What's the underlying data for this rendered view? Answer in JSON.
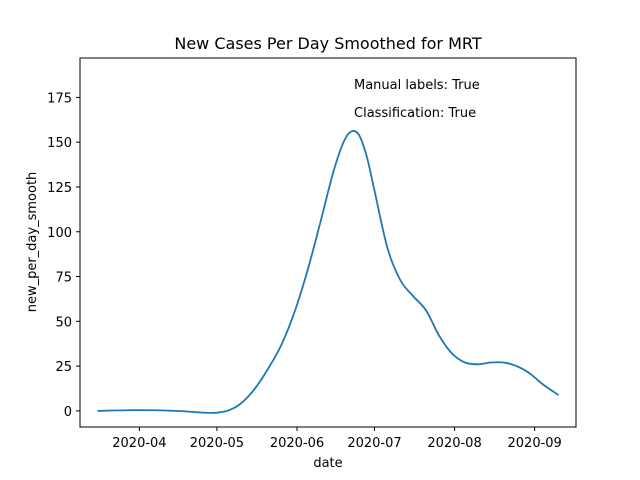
{
  "chart_data": {
    "type": "line",
    "title": "New Cases Per Day Smoothed for MRT",
    "xlabel": "date",
    "ylabel": "new_per_day_smooth",
    "ylim": [
      -9,
      197
    ],
    "xlim": [
      "2020-03-09",
      "2020-09-17"
    ],
    "yticks": [
      0,
      25,
      50,
      75,
      100,
      125,
      150,
      175
    ],
    "xticks": [
      "2020-04-01",
      "2020-05-01",
      "2020-06-01",
      "2020-07-01",
      "2020-08-01",
      "2020-09-01"
    ],
    "xtick_labels": [
      "2020-04",
      "2020-05",
      "2020-06",
      "2020-07",
      "2020-08",
      "2020-09"
    ],
    "grid": false,
    "annotations": [
      "Manual labels: True",
      "Classification: True"
    ],
    "line_color": "#1f77b4",
    "series": [
      {
        "x": [
          "2020-03-16",
          "2020-03-31",
          "2020-04-15",
          "2020-04-26",
          "2020-05-01",
          "2020-05-06",
          "2020-05-11",
          "2020-05-16",
          "2020-05-21",
          "2020-05-26",
          "2020-05-31",
          "2020-06-05",
          "2020-06-10",
          "2020-06-15",
          "2020-06-19",
          "2020-06-22",
          "2020-06-25",
          "2020-06-28",
          "2020-07-01",
          "2020-07-06",
          "2020-07-11",
          "2020-07-16",
          "2020-07-21",
          "2020-07-26",
          "2020-07-31",
          "2020-08-05",
          "2020-08-10",
          "2020-08-15",
          "2020-08-20",
          "2020-08-25",
          "2020-08-30",
          "2020-09-04",
          "2020-09-10"
        ],
        "y": [
          0,
          0.4,
          0,
          -1,
          -1,
          0.5,
          5,
          13,
          24,
          37,
          55,
          78,
          105,
          133,
          150,
          156,
          154,
          142,
          123,
          91,
          73,
          64,
          56,
          42,
          32,
          27,
          26,
          27,
          27,
          25,
          21,
          15,
          9
        ]
      }
    ]
  }
}
